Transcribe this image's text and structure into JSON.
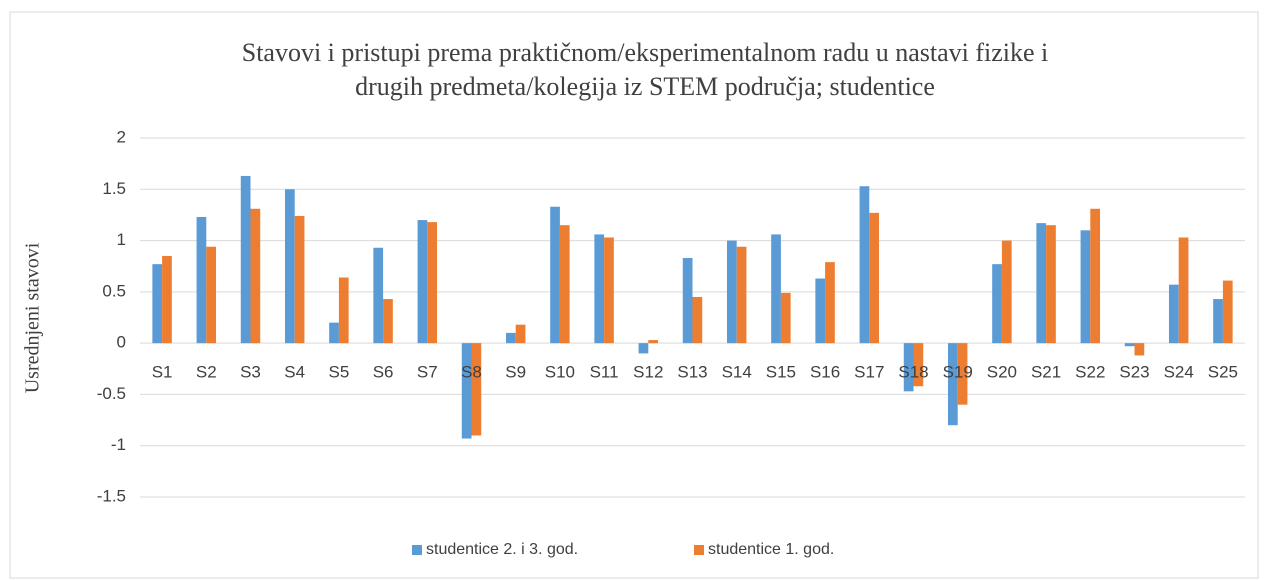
{
  "chart_data": {
    "type": "bar",
    "title": [
      "Stavovi i pristupi prema praktičnom/eksperimentalnom radu u nastavi fizike i",
      "drugih predmeta/kolegija iz STEM područja; studentice"
    ],
    "ylabel": "Usrednjeni stavovi",
    "categories": [
      "S1",
      "S2",
      "S3",
      "S4",
      "S5",
      "S6",
      "S7",
      "S8",
      "S9",
      "S10",
      "S11",
      "S12",
      "S13",
      "S14",
      "S15",
      "S16",
      "S17",
      "S18",
      "S19",
      "S20",
      "S21",
      "S22",
      "S23",
      "S24",
      "S25"
    ],
    "series": [
      {
        "name": "studentice 2. i 3. god.",
        "color": "#5b9bd5",
        "values": [
          0.77,
          1.23,
          1.63,
          1.5,
          0.2,
          0.93,
          1.2,
          -0.93,
          0.1,
          1.33,
          1.06,
          -0.1,
          0.83,
          1.0,
          1.06,
          0.63,
          1.53,
          -0.47,
          -0.8,
          0.77,
          1.17,
          1.1,
          -0.03,
          0.57,
          0.43
        ]
      },
      {
        "name": "studentice 1. god.",
        "color": "#ed7d31",
        "values": [
          0.85,
          0.94,
          1.31,
          1.24,
          0.64,
          0.43,
          1.18,
          -0.9,
          0.18,
          1.15,
          1.03,
          0.03,
          0.45,
          0.94,
          0.49,
          0.79,
          1.27,
          -0.42,
          -0.6,
          1.0,
          1.15,
          1.31,
          -0.12,
          1.03,
          0.61
        ]
      }
    ],
    "ylim": [
      -1.5,
      2
    ],
    "yticks": [
      2,
      1.5,
      1,
      0.5,
      0,
      -0.5,
      -1,
      -1.5
    ],
    "grid": true,
    "legend": "bottom"
  }
}
